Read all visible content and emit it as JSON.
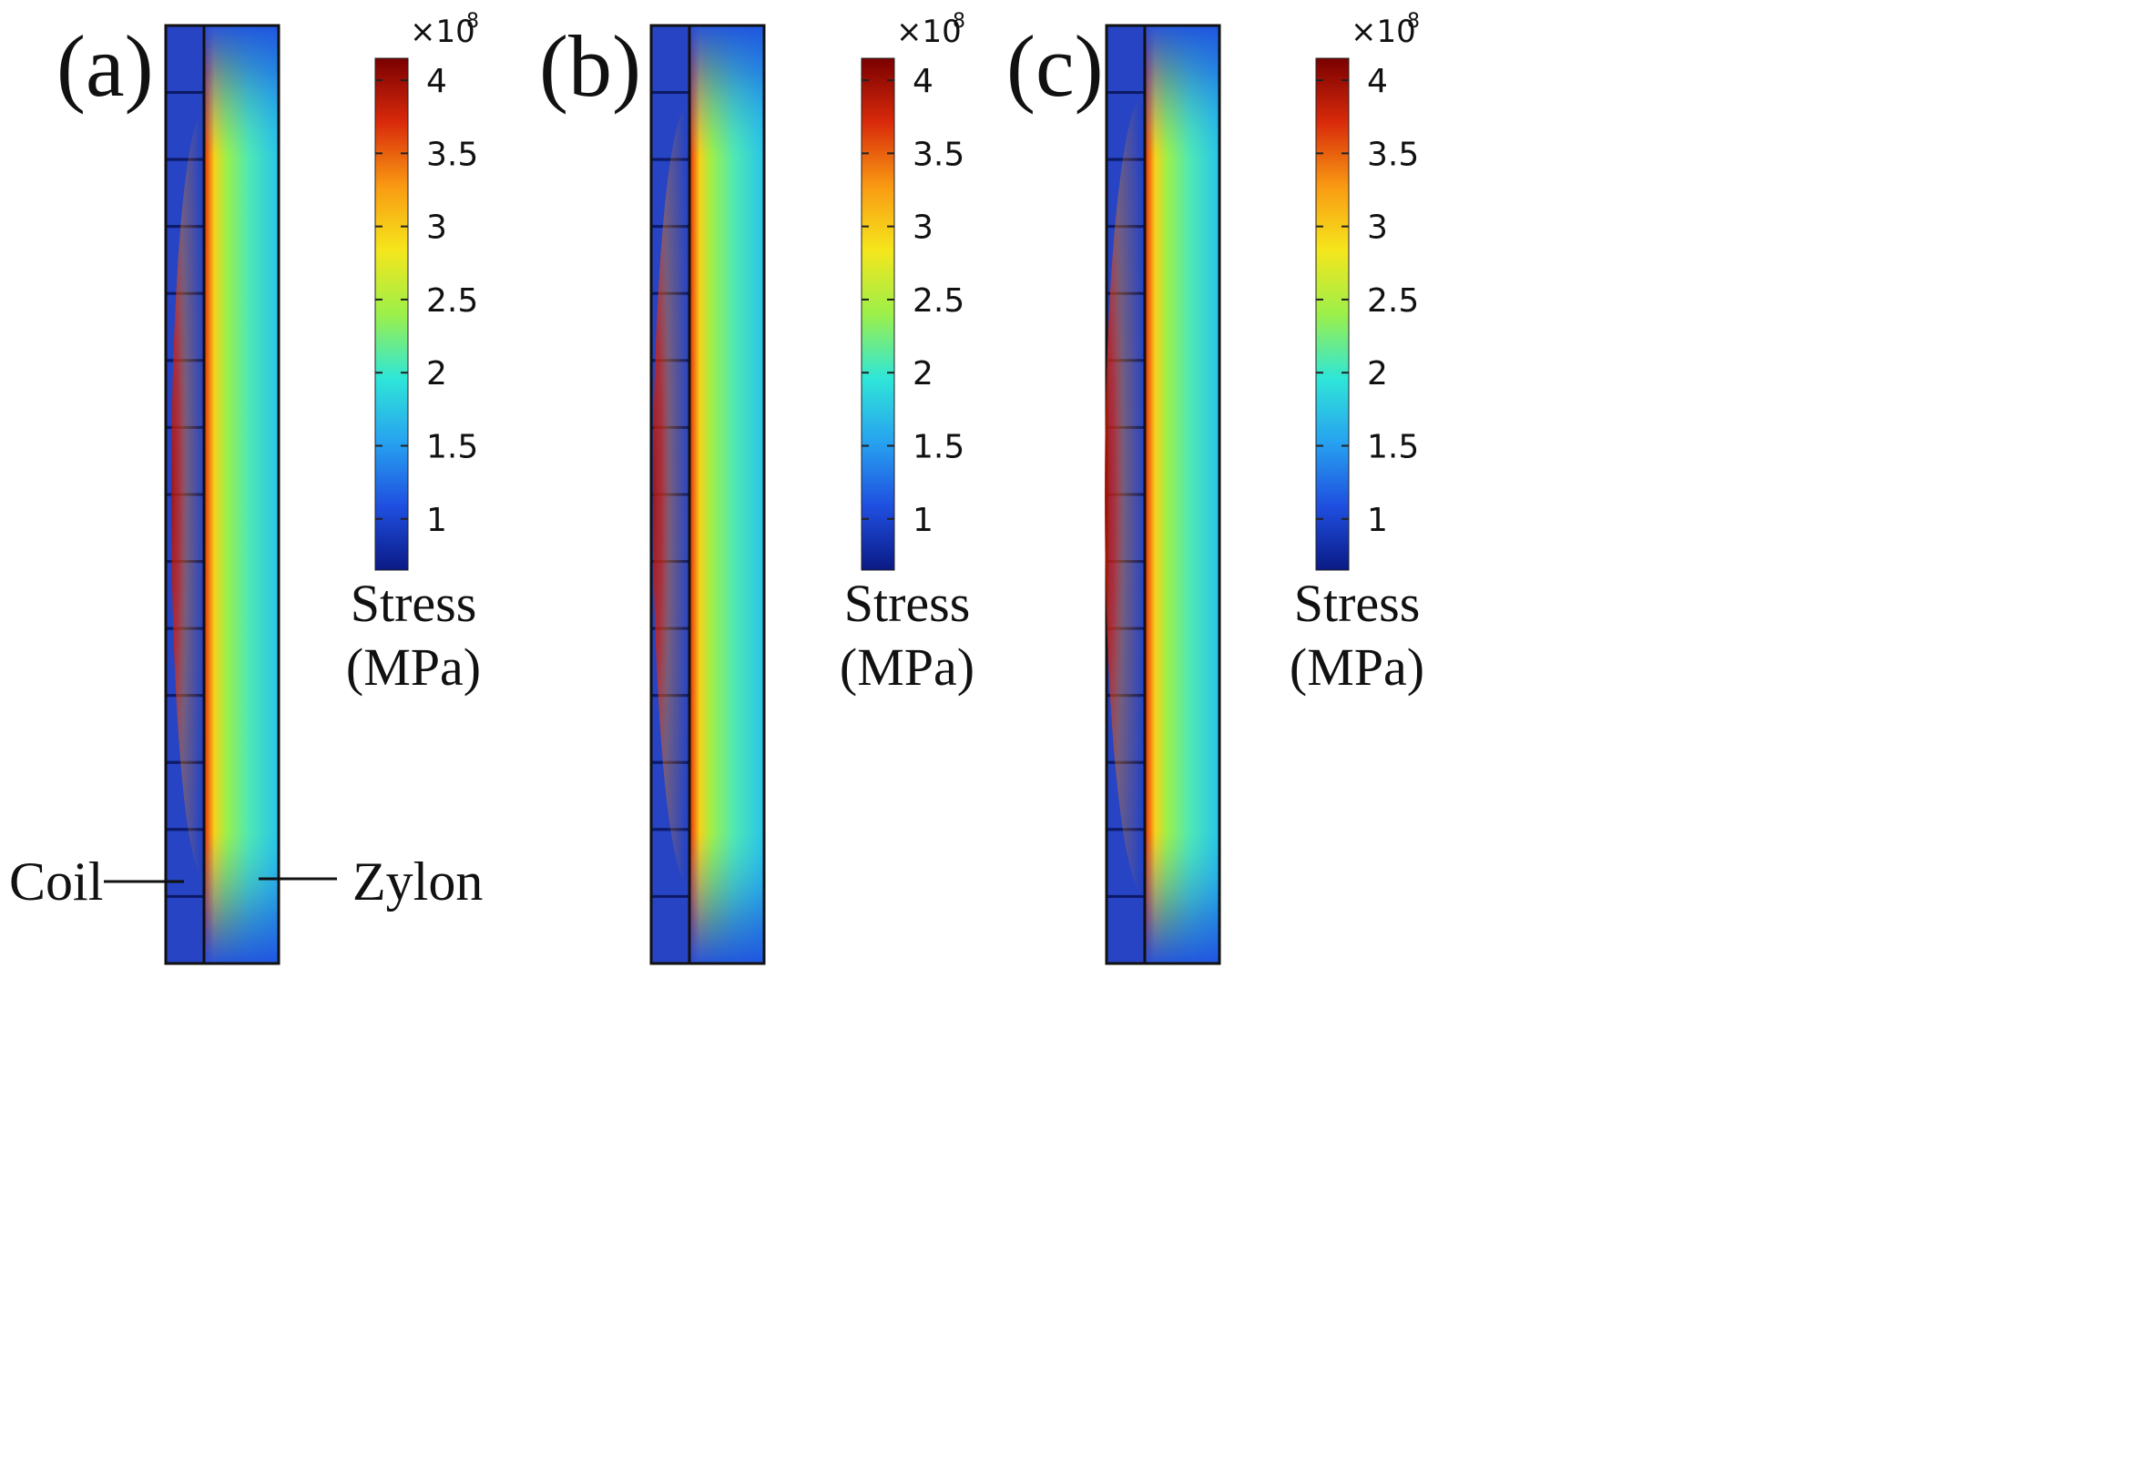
{
  "figure": {
    "panels": [
      {
        "id": "a",
        "label": "(a)",
        "glow_scale": 0.85
      },
      {
        "id": "b",
        "label": "(b)",
        "glow_scale": 1.0
      },
      {
        "id": "c",
        "label": "(c)",
        "glow_scale": 1.15
      }
    ],
    "coil_segments": 14,
    "annotations": {
      "coil": "Coil",
      "zylon": "Zylon"
    }
  },
  "colorbar": {
    "multiplier": "×10",
    "exponent": "8",
    "ticks": [
      "4",
      "3.5",
      "3",
      "2.5",
      "2",
      "1.5",
      "1"
    ],
    "tick_values": [
      4,
      3.5,
      3,
      2.5,
      2,
      1.5,
      1
    ],
    "range": [
      0.65,
      4.15
    ],
    "title_line1": "Stress",
    "title_line2": "(MPa)",
    "colors": [
      "#0a1a85",
      "#1f4fe0",
      "#27a2f0",
      "#2fe6d8",
      "#9cf04a",
      "#f5e61c",
      "#f99a12",
      "#d92a0b",
      "#7a0000"
    ]
  },
  "colors": {
    "coil_fill": "#2f52d8",
    "coil_edge": "#0d1a5e",
    "outline": "#111111"
  }
}
